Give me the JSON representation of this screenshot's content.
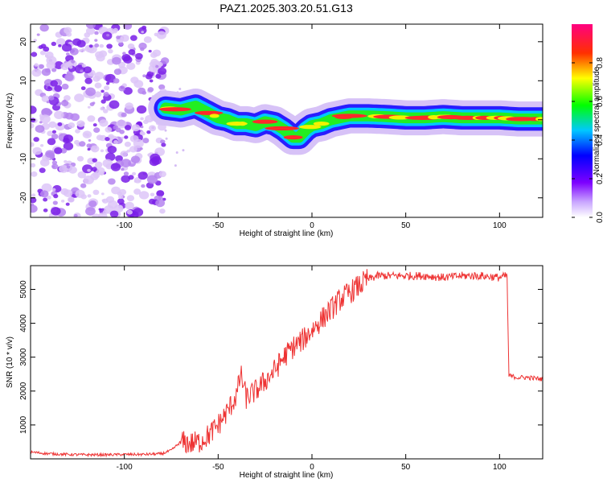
{
  "figure": {
    "title": "PAZ1.2025.303.20.51.G13"
  },
  "chart_data": [
    {
      "type": "heatmap",
      "title": "PAZ1.2025.303.20.51.G13",
      "xlabel": "Height of straight line (km)",
      "ylabel": "Frequency (Hz)",
      "xlim": [
        -150,
        123
      ],
      "ylim": [
        -25,
        24.5
      ],
      "xticks": [
        -100,
        -50,
        0,
        50,
        100
      ],
      "yticks": [
        -20,
        -10,
        0,
        10,
        20
      ],
      "grid": false,
      "noise_region_x": [
        -150,
        -78
      ],
      "ridge": {
        "description_points_x": [
          -78,
          -70,
          -62,
          -58,
          -50,
          -45,
          -40,
          -35,
          -30,
          -25,
          -20,
          -15,
          -10,
          -7,
          -3,
          0,
          5,
          10,
          15,
          20,
          30,
          40,
          50,
          60,
          70,
          80,
          90,
          100,
          110,
          123
        ],
        "frequency_hz": [
          3,
          2.5,
          3.5,
          2.5,
          0.5,
          0,
          -1,
          -1,
          -1.5,
          -0.5,
          -1,
          -2.5,
          -4.5,
          -4.5,
          -2.5,
          -1.5,
          -1,
          0,
          0.5,
          1,
          1,
          0.8,
          0.5,
          0.5,
          0.8,
          0.5,
          0.5,
          0.5,
          0.2,
          0.2
        ]
      },
      "colorbar": {
        "label": "Normalized spectral amplitude",
        "range": [
          0,
          1
        ],
        "ticks": [
          "0.0",
          "0.2",
          "0.4",
          "0.6",
          "0.8"
        ],
        "colors": [
          "#ffffff",
          "#7d00ff",
          "#0000ff",
          "#00ffff",
          "#00ff00",
          "#ffff00",
          "#ff0000",
          "#ff0080"
        ]
      }
    },
    {
      "type": "line",
      "xlabel": "Height of straight line (km)",
      "ylabel": "SNR (10 * v/v)",
      "xlim": [
        -150,
        123
      ],
      "ylim": [
        0,
        5700
      ],
      "xticks": [
        -100,
        -50,
        0,
        50,
        100
      ],
      "yticks": [
        1000,
        2000,
        3000,
        4000,
        5000
      ],
      "color": "#ee3333",
      "grid": false,
      "x": [
        -150,
        -140,
        -130,
        -120,
        -110,
        -100,
        -90,
        -80,
        -75,
        -70,
        -65,
        -60,
        -55,
        -50,
        -45,
        -40,
        -38,
        -35,
        -30,
        -25,
        -20,
        -15,
        -10,
        -5,
        0,
        5,
        10,
        15,
        20,
        25,
        30,
        35,
        40,
        50,
        60,
        70,
        80,
        90,
        100,
        104,
        105,
        110,
        115,
        123
      ],
      "y": [
        200,
        150,
        130,
        120,
        120,
        130,
        130,
        150,
        250,
        500,
        450,
        500,
        700,
        1000,
        1400,
        1900,
        2500,
        1800,
        2000,
        2300,
        2600,
        3000,
        3300,
        3500,
        3800,
        4100,
        4400,
        4700,
        4900,
        5100,
        5300,
        5400,
        5400,
        5400,
        5400,
        5350,
        5400,
        5400,
        5350,
        5400,
        2450,
        2400,
        2400,
        2350
      ]
    }
  ]
}
